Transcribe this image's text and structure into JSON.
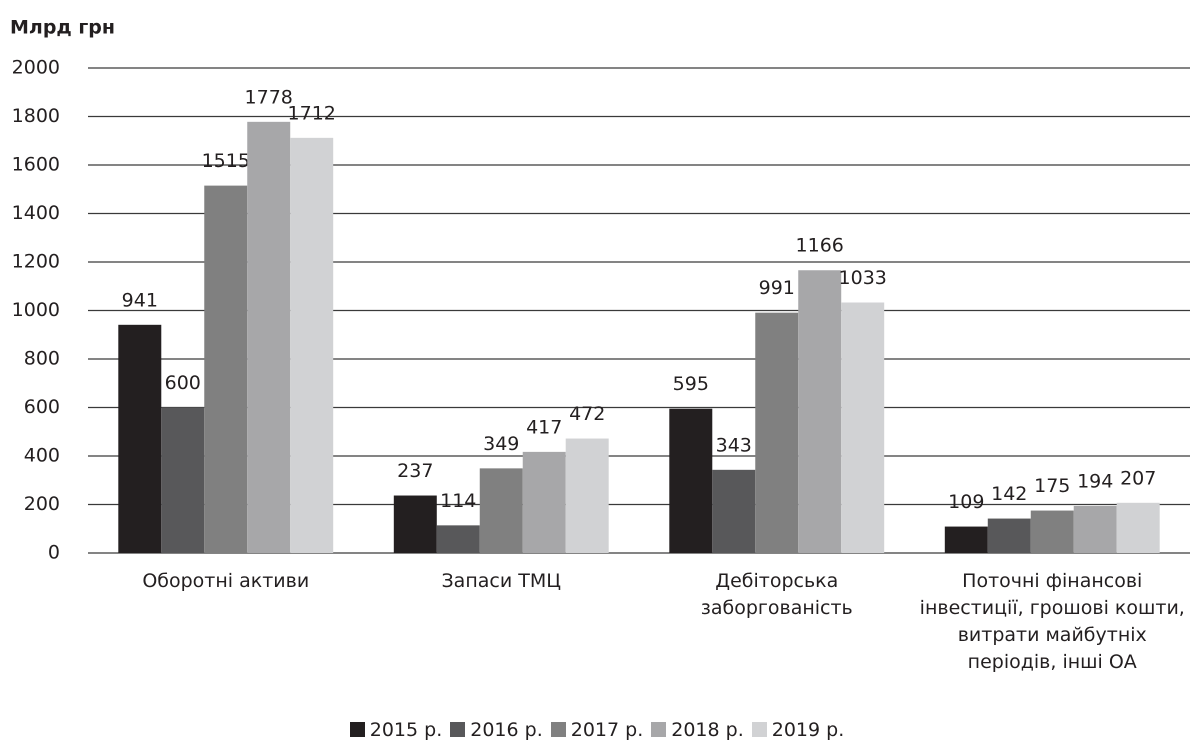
{
  "chart_data": {
    "type": "bar",
    "y_axis_label": "Млрд грн",
    "categories": [
      "Оборотні активи",
      "Запаси ТМЦ",
      "Дебіторська заборгованість",
      "Поточні фінансові інвестиції, грошові кошти, витрати майбутніх періодів, інші ОА"
    ],
    "series": [
      {
        "name": "2015 р.",
        "color": "#231f20",
        "values": [
          941,
          237,
          595,
          109
        ]
      },
      {
        "name": "2016 р.",
        "color": "#58585a",
        "values": [
          600,
          114,
          343,
          142
        ]
      },
      {
        "name": "2017 р.",
        "color": "#808080",
        "values": [
          1515,
          349,
          991,
          175
        ]
      },
      {
        "name": "2018 р.",
        "color": "#a7a7a9",
        "values": [
          1778,
          417,
          1166,
          194
        ]
      },
      {
        "name": "2019 р.",
        "color": "#d1d2d4",
        "values": [
          1712,
          472,
          1033,
          207
        ]
      }
    ],
    "ylim": [
      0,
      2000
    ],
    "yticks": [
      0,
      200,
      400,
      600,
      800,
      1000,
      1200,
      1400,
      1600,
      1800,
      2000
    ],
    "grid": true,
    "legend": "bottom"
  }
}
